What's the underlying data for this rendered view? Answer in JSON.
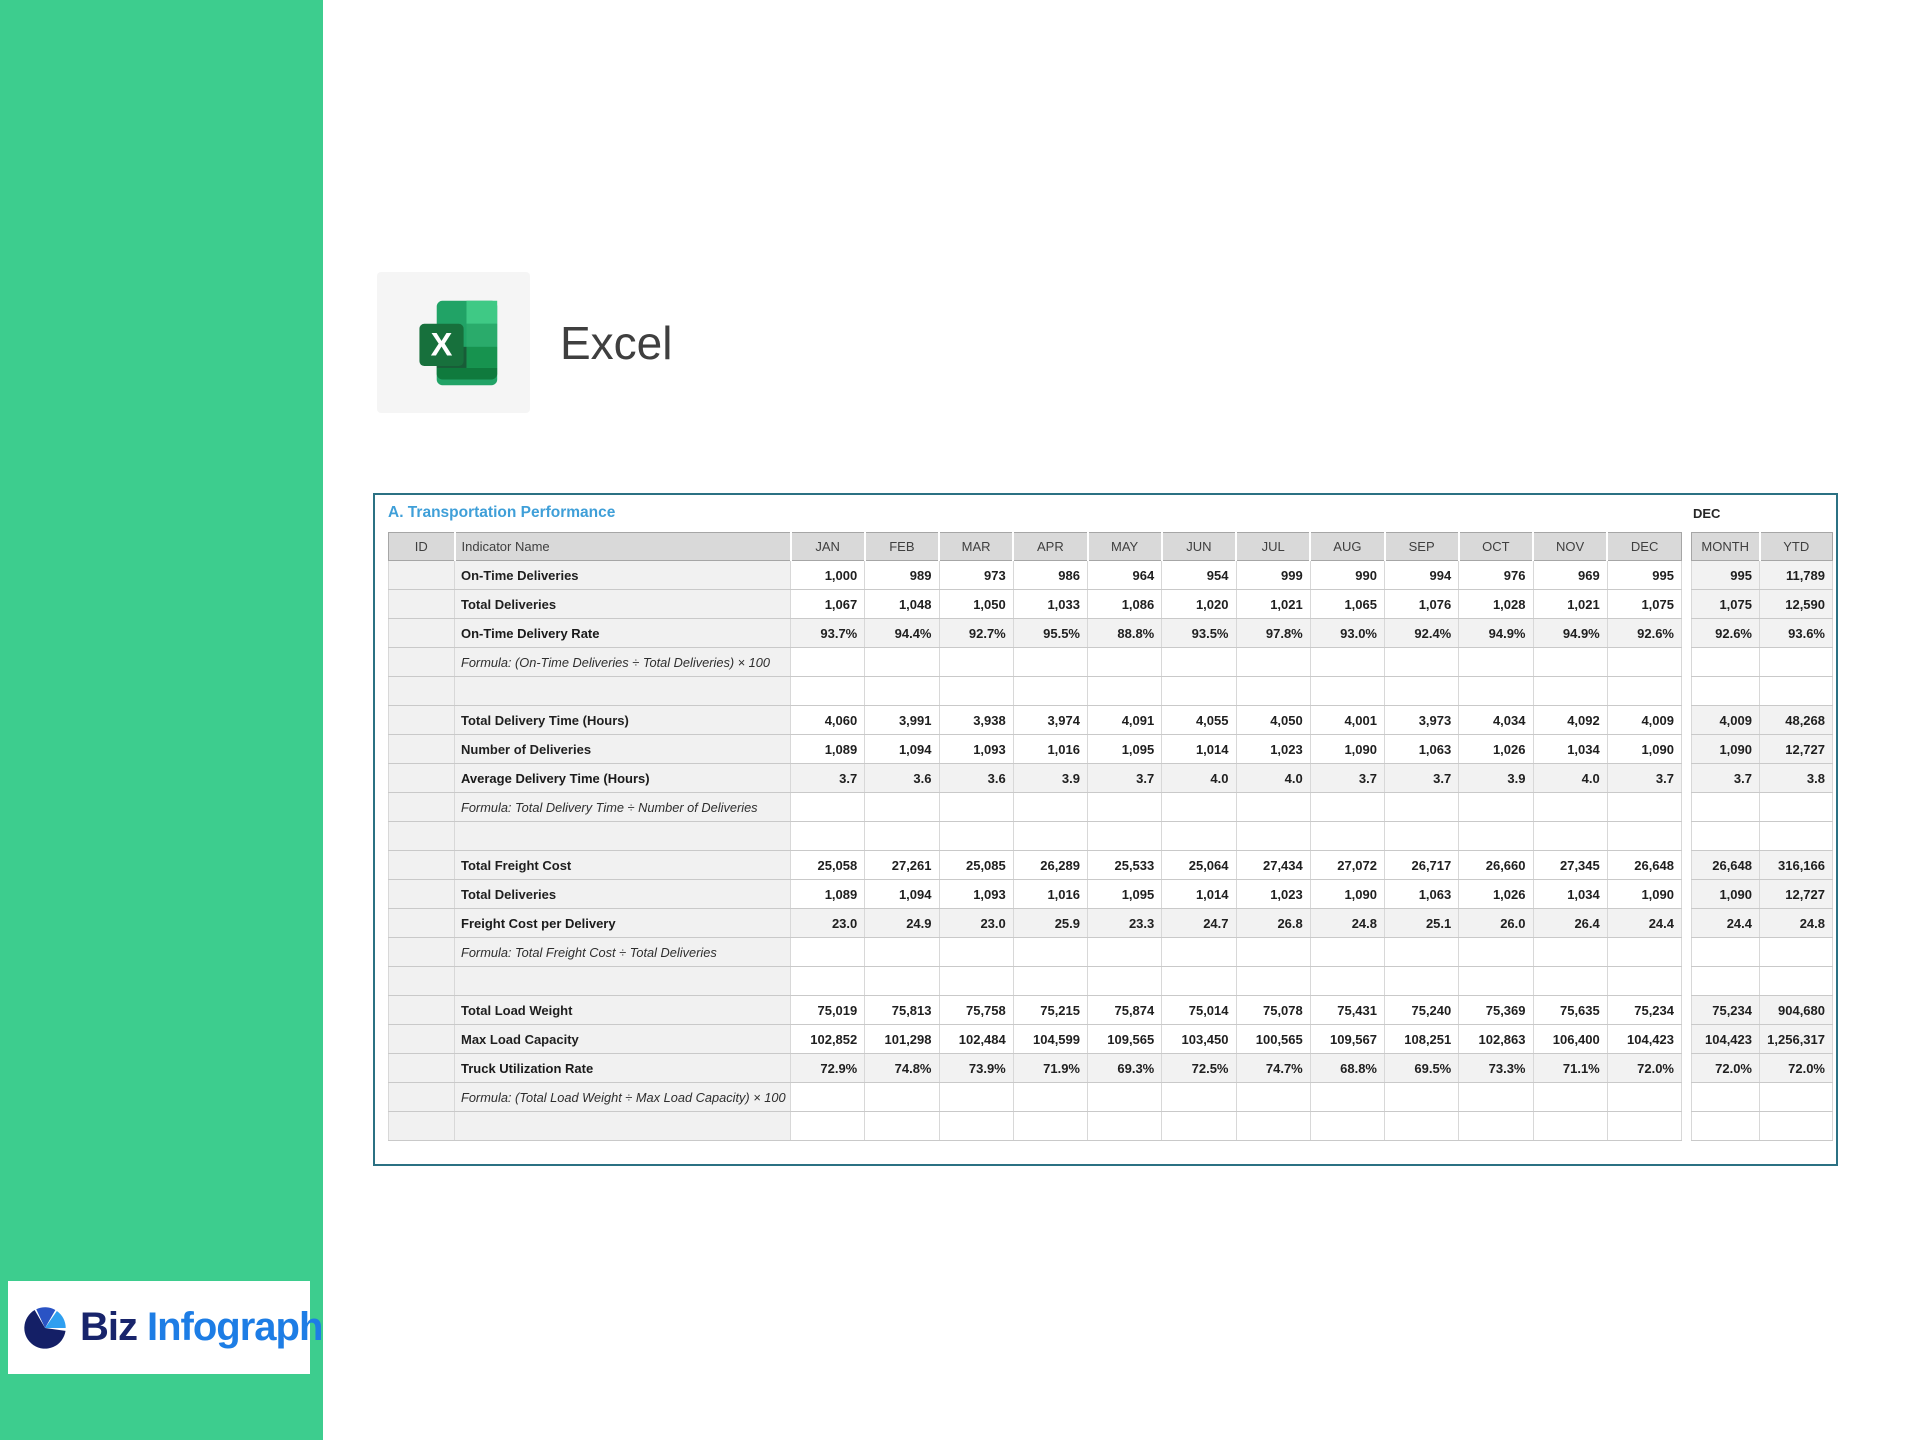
{
  "colors": {
    "green_sidebar": "#3dcd8e",
    "panel_border": "#2b7183",
    "title_blue": "#3f9fd8",
    "header_gray": "#d9d9d9",
    "cell_shade": "#f2f2f2",
    "brand_navy": "#18246b",
    "brand_blue": "#1d7de5",
    "excel_text": "#3f3f3f",
    "excel_icon_greens": [
      "#3fc985",
      "#2aab6b",
      "#17934f",
      "#0f7a3d",
      "#21a366",
      "#185c37",
      "#17703c"
    ]
  },
  "sidebar": {
    "brand_primary": "Biz",
    "brand_secondary": "Infograph",
    "pie_icon": "pie-chart-icon"
  },
  "app": {
    "name": "Excel",
    "icon": "excel-icon"
  },
  "panel": {
    "title": "A. Transportation Performance",
    "summary_group_label": "DEC",
    "columns": [
      "ID",
      "Indicator Name",
      "JAN",
      "FEB",
      "MAR",
      "APR",
      "MAY",
      "JUN",
      "JUL",
      "AUG",
      "SEP",
      "OCT",
      "NOV",
      "DEC"
    ],
    "summary_columns": [
      "MONTH",
      "YTD"
    ],
    "rows": [
      {
        "type": "data",
        "name": "On-Time Deliveries",
        "values": [
          "1,000",
          "989",
          "973",
          "986",
          "964",
          "954",
          "999",
          "990",
          "994",
          "976",
          "969",
          "995"
        ],
        "month": "995",
        "ytd": "11,789"
      },
      {
        "type": "data",
        "name": "Total Deliveries",
        "values": [
          "1,067",
          "1,048",
          "1,050",
          "1,033",
          "1,086",
          "1,020",
          "1,021",
          "1,065",
          "1,076",
          "1,028",
          "1,021",
          "1,075"
        ],
        "month": "1,075",
        "ytd": "12,590"
      },
      {
        "type": "kpi",
        "name": "On-Time Delivery Rate",
        "values": [
          "93.7%",
          "94.4%",
          "92.7%",
          "95.5%",
          "88.8%",
          "93.5%",
          "97.8%",
          "93.0%",
          "92.4%",
          "94.9%",
          "94.9%",
          "92.6%"
        ],
        "month": "92.6%",
        "ytd": "93.6%"
      },
      {
        "type": "formula",
        "name": "Formula: (On-Time Deliveries ÷ Total Deliveries) × 100"
      },
      {
        "type": "empty"
      },
      {
        "type": "data",
        "name": "Total Delivery Time (Hours)",
        "values": [
          "4,060",
          "3,991",
          "3,938",
          "3,974",
          "4,091",
          "4,055",
          "4,050",
          "4,001",
          "3,973",
          "4,034",
          "4,092",
          "4,009"
        ],
        "month": "4,009",
        "ytd": "48,268"
      },
      {
        "type": "data",
        "name": "Number of Deliveries",
        "values": [
          "1,089",
          "1,094",
          "1,093",
          "1,016",
          "1,095",
          "1,014",
          "1,023",
          "1,090",
          "1,063",
          "1,026",
          "1,034",
          "1,090"
        ],
        "month": "1,090",
        "ytd": "12,727"
      },
      {
        "type": "kpi",
        "name": "Average Delivery Time (Hours)",
        "values": [
          "3.7",
          "3.6",
          "3.6",
          "3.9",
          "3.7",
          "4.0",
          "4.0",
          "3.7",
          "3.7",
          "3.9",
          "4.0",
          "3.7"
        ],
        "month": "3.7",
        "ytd": "3.8"
      },
      {
        "type": "formula",
        "name": "Formula: Total Delivery Time ÷ Number of Deliveries"
      },
      {
        "type": "empty"
      },
      {
        "type": "data",
        "name": "Total Freight Cost",
        "values": [
          "25,058",
          "27,261",
          "25,085",
          "26,289",
          "25,533",
          "25,064",
          "27,434",
          "27,072",
          "26,717",
          "26,660",
          "27,345",
          "26,648"
        ],
        "month": "26,648",
        "ytd": "316,166"
      },
      {
        "type": "data",
        "name": "Total Deliveries",
        "values": [
          "1,089",
          "1,094",
          "1,093",
          "1,016",
          "1,095",
          "1,014",
          "1,023",
          "1,090",
          "1,063",
          "1,026",
          "1,034",
          "1,090"
        ],
        "month": "1,090",
        "ytd": "12,727"
      },
      {
        "type": "kpi",
        "name": "Freight Cost per Delivery",
        "values": [
          "23.0",
          "24.9",
          "23.0",
          "25.9",
          "23.3",
          "24.7",
          "26.8",
          "24.8",
          "25.1",
          "26.0",
          "26.4",
          "24.4"
        ],
        "month": "24.4",
        "ytd": "24.8"
      },
      {
        "type": "formula",
        "name": "Formula: Total Freight Cost ÷ Total Deliveries"
      },
      {
        "type": "empty"
      },
      {
        "type": "data",
        "name": "Total Load Weight",
        "values": [
          "75,019",
          "75,813",
          "75,758",
          "75,215",
          "75,874",
          "75,014",
          "75,078",
          "75,431",
          "75,240",
          "75,369",
          "75,635",
          "75,234"
        ],
        "month": "75,234",
        "ytd": "904,680"
      },
      {
        "type": "data",
        "name": "Max Load Capacity",
        "values": [
          "102,852",
          "101,298",
          "102,484",
          "104,599",
          "109,565",
          "103,450",
          "100,565",
          "109,567",
          "108,251",
          "102,863",
          "106,400",
          "104,423"
        ],
        "month": "104,423",
        "ytd": "1,256,317"
      },
      {
        "type": "kpi",
        "name": "Truck Utilization Rate",
        "values": [
          "72.9%",
          "74.8%",
          "73.9%",
          "71.9%",
          "69.3%",
          "72.5%",
          "74.7%",
          "68.8%",
          "69.5%",
          "73.3%",
          "71.1%",
          "72.0%"
        ],
        "month": "72.0%",
        "ytd": "72.0%"
      },
      {
        "type": "formula",
        "name": "Formula: (Total Load Weight ÷ Max Load Capacity) × 100"
      },
      {
        "type": "empty"
      }
    ]
  }
}
